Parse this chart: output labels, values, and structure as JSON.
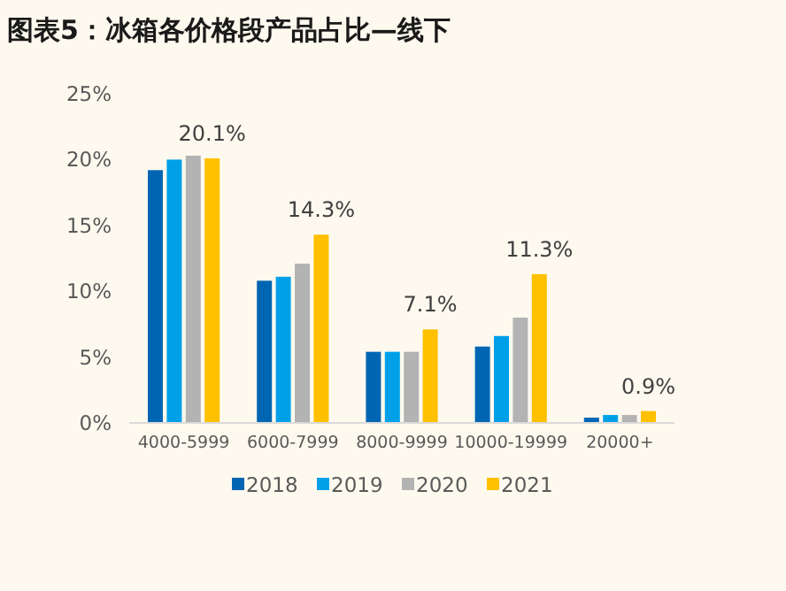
{
  "chart_data": {
    "type": "bar",
    "title": "图表5：冰箱各价格段产品占比—线下",
    "categories": [
      "4000-5999",
      "6000-7999",
      "8000-9999",
      "10000-19999",
      "20000+"
    ],
    "series": [
      {
        "name": "2018",
        "color": "#0066b3",
        "values": [
          19.2,
          10.8,
          5.4,
          5.8,
          0.4
        ]
      },
      {
        "name": "2019",
        "color": "#00a0e9",
        "values": [
          20.0,
          11.1,
          5.4,
          6.6,
          0.6
        ]
      },
      {
        "name": "2020",
        "color": "#b3b3b3",
        "values": [
          20.3,
          12.1,
          5.4,
          8.0,
          0.6
        ]
      },
      {
        "name": "2021",
        "color": "#ffc000",
        "values": [
          20.1,
          14.3,
          7.1,
          11.3,
          0.9
        ],
        "value_labels": [
          "20.1%",
          "14.3%",
          "7.1%",
          "11.3%",
          "0.9%"
        ]
      }
    ],
    "ylim": [
      0,
      25
    ],
    "yticks": [
      {
        "value": 0,
        "label": "0%"
      },
      {
        "value": 5,
        "label": "5%"
      },
      {
        "value": 10,
        "label": "10%"
      },
      {
        "value": 15,
        "label": "15%"
      },
      {
        "value": 20,
        "label": "20%"
      },
      {
        "value": 25,
        "label": "25%"
      }
    ],
    "legend": "bottom",
    "grid": false
  }
}
